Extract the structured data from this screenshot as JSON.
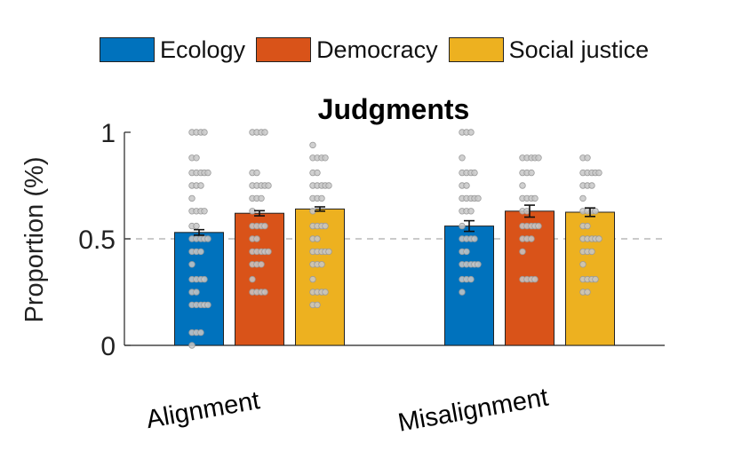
{
  "chart_data": {
    "type": "bar",
    "title": "Judgments",
    "ylabel": "Proportion (%)",
    "xlabel": "",
    "ylim": [
      0,
      1
    ],
    "yticks": [
      0,
      0.5,
      1
    ],
    "reference_line": 0.5,
    "grid": false,
    "legend_position": "top",
    "categories": [
      "Alignment",
      "Misalignment"
    ],
    "series": [
      {
        "name": "Ecology",
        "color": "#0072BD",
        "values": [
          0.53,
          0.56
        ],
        "error": [
          0.013,
          0.025
        ],
        "points": [
          [
            0,
            0.06,
            0.19,
            0.25,
            0.31,
            0.38,
            0.44,
            0.5,
            0.56,
            0.63,
            0.69,
            0.75,
            0.81,
            0.88,
            1
          ],
          [
            0.25,
            0.31,
            0.38,
            0.44,
            0.5,
            0.56,
            0.63,
            0.69,
            0.75,
            0.81,
            0.88,
            1
          ]
        ]
      },
      {
        "name": "Democracy",
        "color": "#D95319",
        "values": [
          0.62,
          0.63
        ],
        "error": [
          0.012,
          0.028
        ],
        "points": [
          [
            0.25,
            0.31,
            0.38,
            0.44,
            0.5,
            0.56,
            0.63,
            0.69,
            0.75,
            0.81,
            1
          ],
          [
            0.31,
            0.44,
            0.5,
            0.56,
            0.63,
            0.69,
            0.75,
            0.81,
            0.88
          ]
        ]
      },
      {
        "name": "Social justice",
        "color": "#EDB120",
        "values": [
          0.64,
          0.625
        ],
        "error": [
          0.01,
          0.02
        ],
        "points": [
          [
            0.19,
            0.25,
            0.31,
            0.38,
            0.44,
            0.5,
            0.56,
            0.63,
            0.69,
            0.75,
            0.81,
            0.88,
            0.94
          ],
          [
            0.25,
            0.31,
            0.38,
            0.44,
            0.5,
            0.56,
            0.63,
            0.69,
            0.75,
            0.81,
            0.88
          ]
        ]
      }
    ]
  }
}
